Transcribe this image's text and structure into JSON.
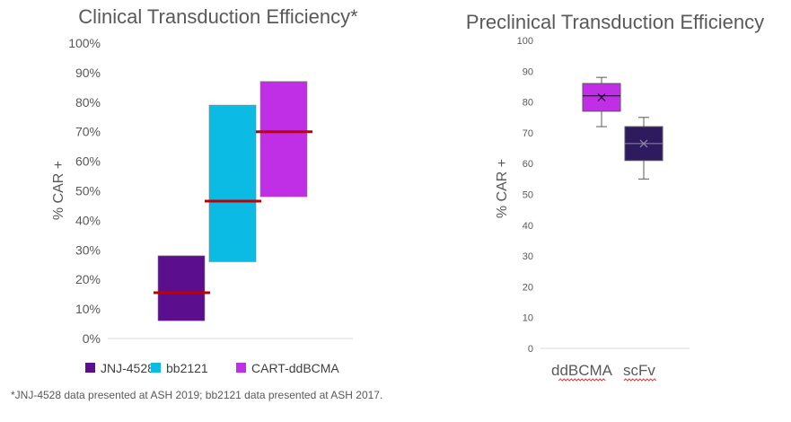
{
  "chart_data": [
    {
      "type": "floating-bar",
      "title": "Clinical Transduction Efficiency*",
      "ylabel": "% CAR +",
      "ylim": [
        0,
        100
      ],
      "yticks": [
        "0%",
        "10%",
        "20%",
        "30%",
        "40%",
        "50%",
        "60%",
        "70%",
        "80%",
        "90%",
        "100%"
      ],
      "series": [
        {
          "name": "JNJ-4528",
          "color": "#5b0f8e",
          "low": 6,
          "high": 28,
          "median": 15.5
        },
        {
          "name": "bb2121",
          "color": "#0bbbe4",
          "low": 26,
          "high": 79,
          "median": 46.5
        },
        {
          "name": "CART-ddBCMA",
          "color": "#c02ee6",
          "low": 48,
          "high": 87,
          "median": 70
        }
      ],
      "median_color": "#c00000",
      "legend": "bottom",
      "footnote": "*JNJ-4528 data presented at ASH 2019; bb2121 data presented at ASH 2017."
    },
    {
      "type": "boxplot",
      "title": "Preclinical Transduction Efficiency",
      "ylabel": "% CAR +",
      "ylim": [
        0,
        100
      ],
      "yticks": [
        "0",
        "10",
        "20",
        "30",
        "40",
        "50",
        "60",
        "70",
        "80",
        "90",
        "100"
      ],
      "categories": [
        "ddBCMA",
        "scFv"
      ],
      "boxes": [
        {
          "name": "ddBCMA",
          "color": "#c02ee6",
          "min": 72,
          "q1": 77,
          "median": 82,
          "q3": 86,
          "max": 88,
          "mean": 81.5
        },
        {
          "name": "scFv",
          "color": "#2e1a5e",
          "min": 55,
          "q1": 61,
          "median": 66.5,
          "q3": 72,
          "max": 75,
          "mean": 66.5
        }
      ]
    }
  ]
}
